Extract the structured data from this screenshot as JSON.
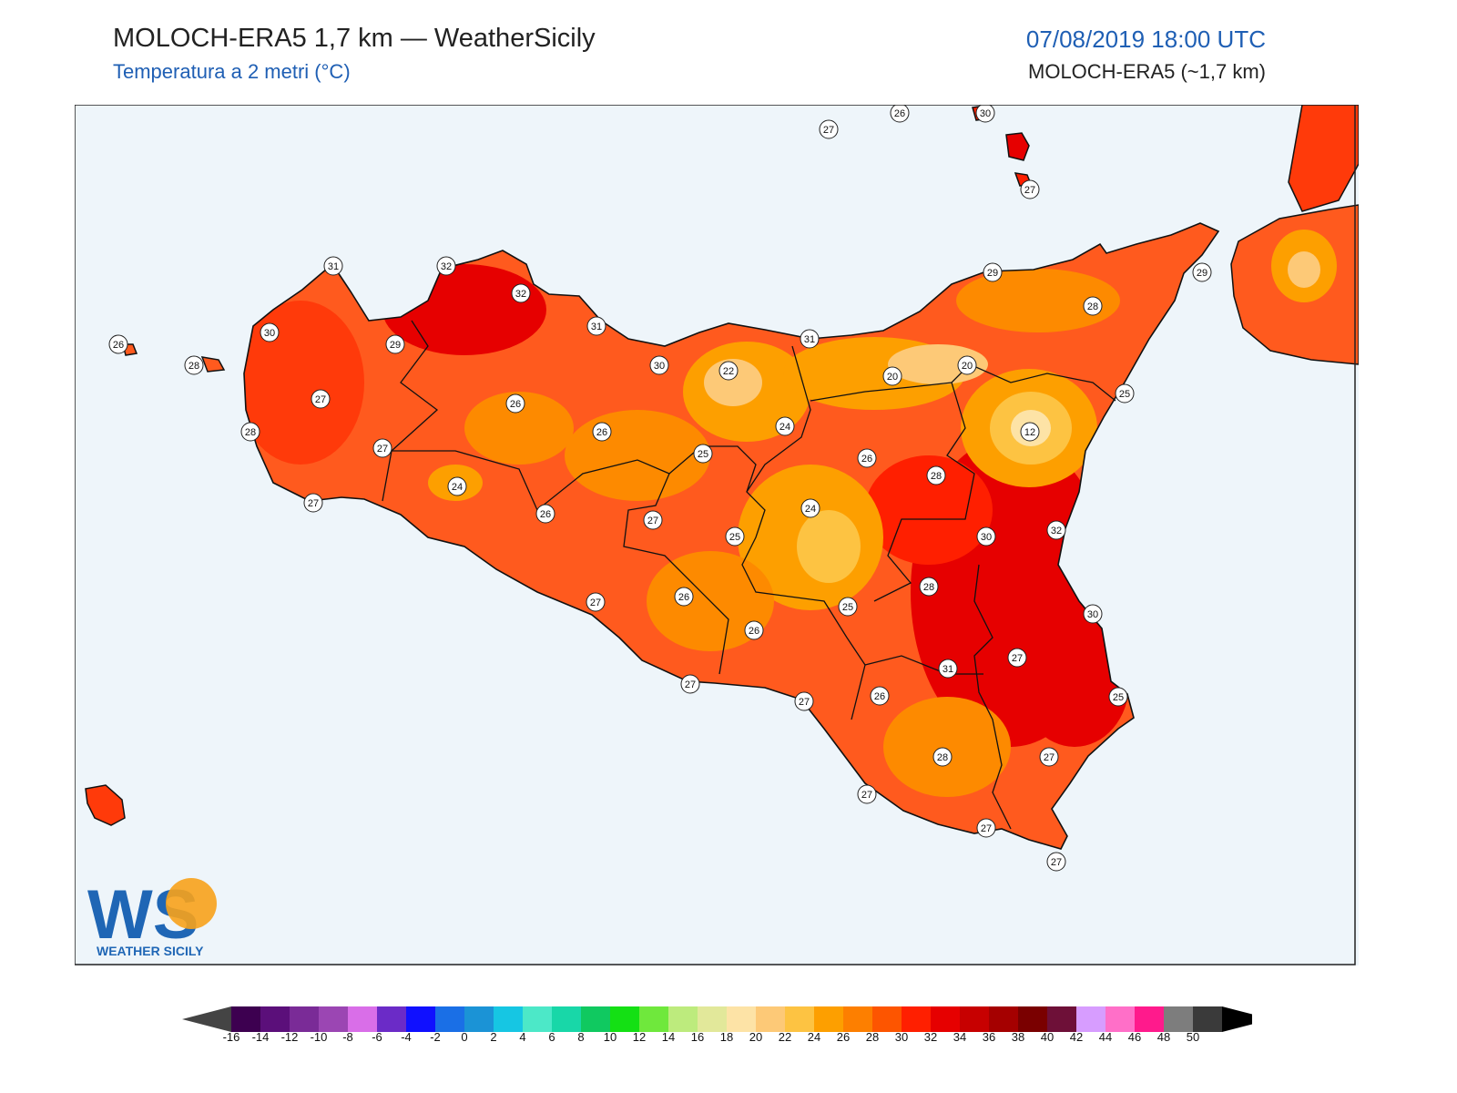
{
  "header": {
    "title": "MOLOCH-ERA5 1,7 km — WeatherSicily",
    "subtitle": "Temperatura a 2 metri (°C)",
    "datetime": "07/08/2019 18:00 UTC",
    "model": "MOLOCH-ERA5 (~1,7 km)"
  },
  "logo": {
    "letters": "WS",
    "text": "WEATHER SICILY"
  },
  "colors": {
    "sea": "#eef5fa",
    "land_base": "#ff5a1e",
    "outline": "#111111"
  },
  "colorbar": {
    "ticks": [
      "-16",
      "-14",
      "-12",
      "-10",
      "-8",
      "-6",
      "-4",
      "-2",
      "0",
      "2",
      "4",
      "6",
      "8",
      "10",
      "12",
      "14",
      "16",
      "18",
      "20",
      "22",
      "24",
      "26",
      "28",
      "30",
      "32",
      "34",
      "36",
      "38",
      "40",
      "42",
      "44",
      "46",
      "48",
      "50"
    ],
    "colors": [
      "#3d0050",
      "#5b0f7a",
      "#7a2b97",
      "#9b46b3",
      "#d96ee8",
      "#6b2bc7",
      "#1010ff",
      "#1a6fe6",
      "#1b93d6",
      "#16c6e3",
      "#4ce8c8",
      "#18d7a8",
      "#10c960",
      "#14e014",
      "#6fe83c",
      "#bdeb7d",
      "#e2e89a",
      "#fde3a6",
      "#fdc977",
      "#fdc342",
      "#fd9f00",
      "#fd7f00",
      "#fd5500",
      "#ff1f00",
      "#e60000",
      "#c70000",
      "#a50000",
      "#7a0000",
      "#6e1038",
      "#d79dff",
      "#ff6fc8",
      "#ff1a8c",
      "#7d7d7d",
      "#3a3a3a"
    ],
    "under": "#444444",
    "over": "#000000"
  },
  "station_labels": [
    {
      "v": "27"
    },
    {
      "v": "26"
    },
    {
      "v": "30"
    },
    {
      "v": "27"
    },
    {
      "v": "31"
    },
    {
      "v": "32"
    },
    {
      "v": "32"
    },
    {
      "v": "26"
    },
    {
      "v": "28"
    },
    {
      "v": "30"
    },
    {
      "v": "29"
    },
    {
      "v": "27"
    },
    {
      "v": "28"
    },
    {
      "v": "27"
    },
    {
      "v": "27"
    },
    {
      "v": "31"
    },
    {
      "v": "30"
    },
    {
      "v": "26"
    },
    {
      "v": "26"
    },
    {
      "v": "24"
    },
    {
      "v": "26"
    },
    {
      "v": "22"
    },
    {
      "v": "24"
    },
    {
      "v": "25"
    },
    {
      "v": "27"
    },
    {
      "v": "25"
    },
    {
      "v": "24"
    },
    {
      "v": "31"
    },
    {
      "v": "29"
    },
    {
      "v": "20"
    },
    {
      "v": "20"
    },
    {
      "v": "28"
    },
    {
      "v": "29"
    },
    {
      "v": "25"
    },
    {
      "v": "12"
    },
    {
      "v": "26"
    },
    {
      "v": "28"
    },
    {
      "v": "30"
    },
    {
      "v": "32"
    },
    {
      "v": "28"
    },
    {
      "v": "25"
    },
    {
      "v": "30"
    },
    {
      "v": "27"
    },
    {
      "v": "26"
    },
    {
      "v": "26"
    },
    {
      "v": "27"
    },
    {
      "v": "27"
    },
    {
      "v": "27"
    },
    {
      "v": "26"
    },
    {
      "v": "31"
    },
    {
      "v": "25"
    },
    {
      "v": "28"
    },
    {
      "v": "27"
    },
    {
      "v": "27"
    },
    {
      "v": "27"
    },
    {
      "v": "27"
    }
  ]
}
